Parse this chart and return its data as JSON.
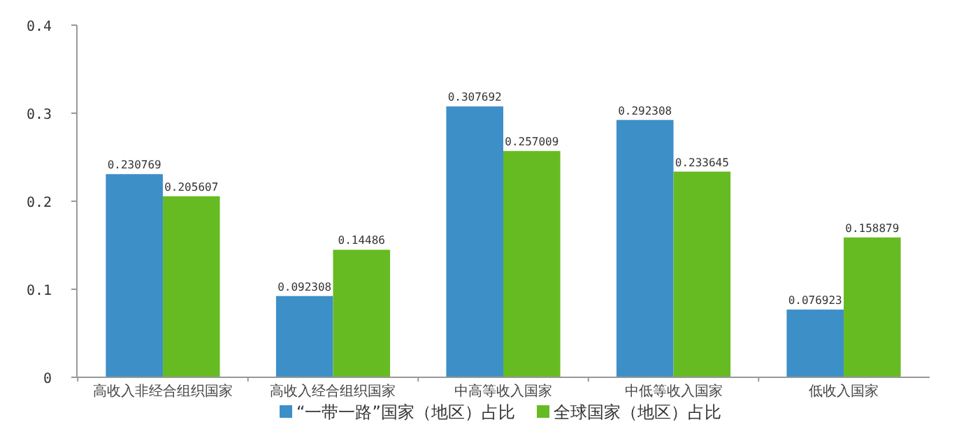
{
  "chart_data": {
    "type": "bar",
    "categories": [
      "高收入非经合组织国家",
      "高收入经合组织国家",
      "中高等收入国家",
      "中低等收入国家",
      "低收入国家"
    ],
    "series": [
      {
        "name": "“一带一路”国家（地区）占比",
        "color": "#3d8fc8",
        "values": [
          0.230769,
          0.092308,
          0.307692,
          0.292308,
          0.076923
        ]
      },
      {
        "name": "全球国家（地区）占比",
        "color": "#66bb22",
        "values": [
          0.205607,
          0.14486,
          0.257009,
          0.233645,
          0.158879
        ]
      }
    ],
    "ylim": [
      0,
      0.4
    ],
    "yticks": [
      0,
      0.1,
      0.2,
      0.3,
      0.4
    ],
    "data_labels": true,
    "legend": "bottom",
    "grid": false
  }
}
